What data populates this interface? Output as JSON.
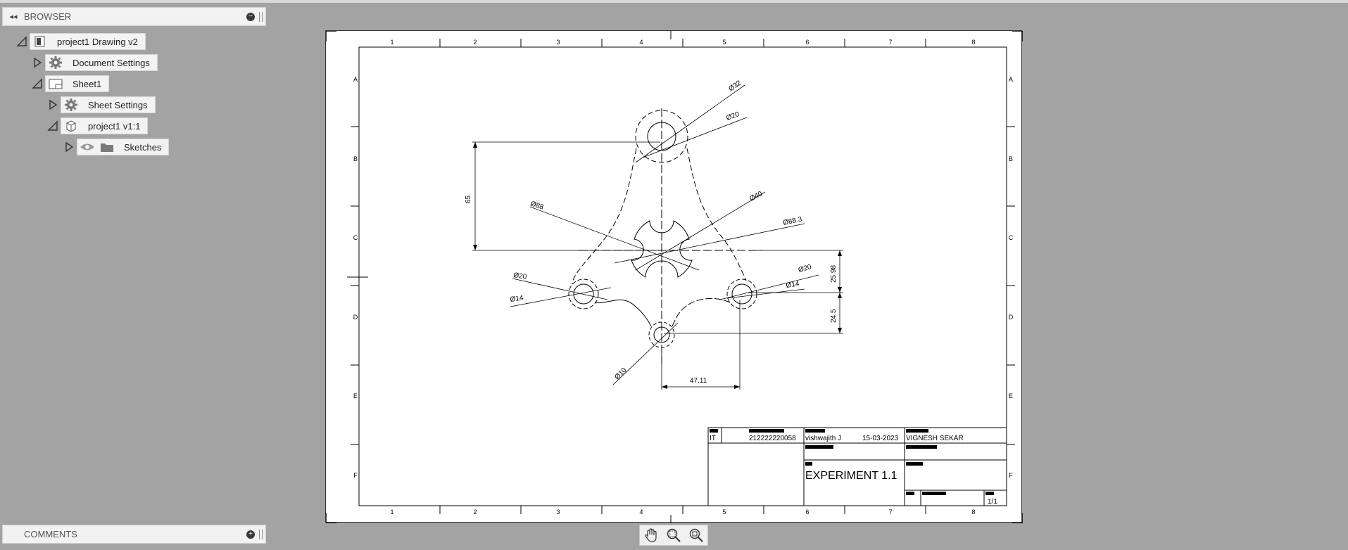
{
  "browser": {
    "title": "BROWSER",
    "tree": {
      "root": "project1 Drawing v2",
      "document_settings": "Document Settings",
      "sheet": "Sheet1",
      "sheet_settings": "Sheet Settings",
      "view": "project1 v1:1",
      "sketches": "Sketches"
    }
  },
  "comments": {
    "title": "COMMENTS"
  },
  "drawing": {
    "columns": [
      "1",
      "2",
      "3",
      "4",
      "5",
      "6",
      "7",
      "8"
    ],
    "rows": [
      "A",
      "B",
      "C",
      "D",
      "E",
      "F"
    ],
    "dimensions": {
      "d32": "Ø32",
      "d20_top": "Ø20",
      "d40": "Ø40",
      "d88_3": "Ø88.3",
      "d88": "Ø88",
      "d20_left": "Ø20",
      "d14_left": "Ø14",
      "d20_right": "Ø20",
      "d14_right": "Ø14",
      "d10": "Ø10",
      "v65": "65",
      "v25_98": "25.98",
      "v24_5": "24.5",
      "h47_11": "47.11"
    },
    "title_block": {
      "dept": "IT",
      "number": "212222220058",
      "drawn_by": "vishwajith J",
      "date": "15-03-2023",
      "approved_by": "VIGNESH SEKAR",
      "title": "EXPERIMENT 1.1",
      "sheet": "1/1"
    }
  },
  "toolbar": {
    "icons": [
      "pan-icon",
      "zoom-window-icon",
      "zoom-fit-icon"
    ]
  },
  "colors": {
    "background": "#a3a3a3",
    "panel": "#f2f2f2",
    "line": "#000000"
  }
}
